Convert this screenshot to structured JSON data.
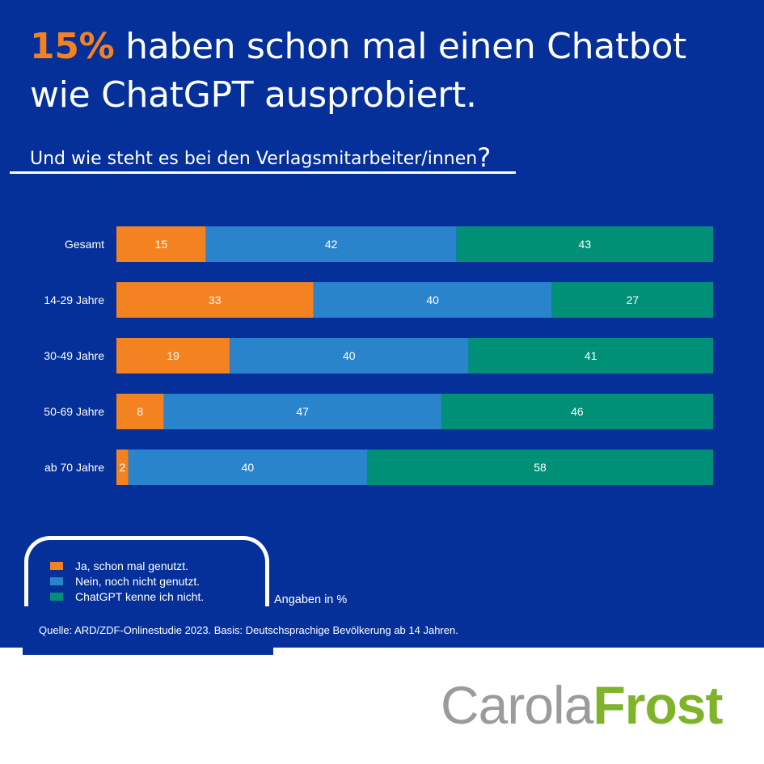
{
  "headline": {
    "highlight": "15%",
    "rest": " haben schon mal einen Chatbot wie ChatGPT ausprobiert."
  },
  "question": {
    "text": "Und wie steht es bei den Verlagsmitarbeiter/innen",
    "mark": "?"
  },
  "chart_data": {
    "type": "bar",
    "orientation": "horizontal",
    "stacked": true,
    "percent_stacked": true,
    "categories": [
      "Gesamt",
      "14-29 Jahre",
      "30-49 Jahre",
      "50-69 Jahre",
      "ab 70 Jahre"
    ],
    "series": [
      {
        "name": "Ja, schon mal genutzt.",
        "color": "#f58220",
        "values": [
          15,
          33,
          19,
          8,
          2
        ]
      },
      {
        "name": "Nein, noch nicht genutzt.",
        "color": "#2a84cc",
        "values": [
          42,
          40,
          40,
          47,
          40
        ]
      },
      {
        "name": "ChatGPT kenne ich nicht.",
        "color": "#009078",
        "values": [
          43,
          27,
          41,
          46,
          58
        ]
      }
    ],
    "data_labels": true,
    "grid": false,
    "legend_position": "bottom-left"
  },
  "unit_note": "Angaben in %",
  "source": "Quelle: ARD/ZDF-Onlinestudie 2023. Basis: Deutschsprachige Bevölkerung ab 14 Jahren.",
  "brand": {
    "part1": "Carola",
    "part2": "Frost"
  },
  "colors": {
    "background": "#05309a",
    "accent": "#f58220",
    "brand_gray": "#9b9b9b",
    "brand_green": "#7fb42a"
  }
}
